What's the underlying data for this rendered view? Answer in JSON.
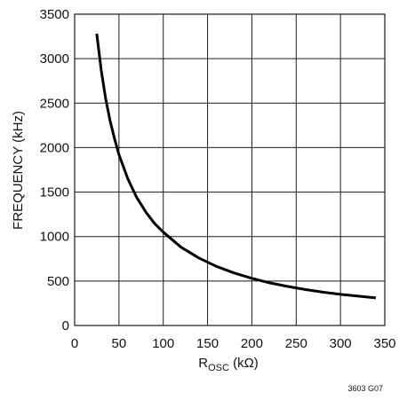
{
  "chart_data": {
    "type": "line",
    "x_axis": {
      "label_main": "R",
      "label_sub": "OSC",
      "label_unit": " (kΩ)",
      "range": [
        0,
        350
      ],
      "ticks": [
        "0",
        "50",
        "100",
        "150",
        "200",
        "250",
        "300",
        "350"
      ]
    },
    "y_axis": {
      "label": "FREQUENCY (kHz)",
      "range": [
        0,
        3500
      ],
      "ticks": [
        "0",
        "500",
        "1000",
        "1500",
        "2000",
        "2500",
        "3000",
        "3500"
      ]
    },
    "grid": true,
    "series": [
      {
        "points": [
          [
            25,
            3280
          ],
          [
            30,
            2870
          ],
          [
            35,
            2550
          ],
          [
            40,
            2300
          ],
          [
            45,
            2100
          ],
          [
            50,
            1920
          ],
          [
            60,
            1650
          ],
          [
            70,
            1440
          ],
          [
            80,
            1280
          ],
          [
            90,
            1150
          ],
          [
            100,
            1050
          ],
          [
            120,
            880
          ],
          [
            140,
            760
          ],
          [
            160,
            665
          ],
          [
            180,
            590
          ],
          [
            200,
            530
          ],
          [
            220,
            480
          ],
          [
            240,
            440
          ],
          [
            260,
            405
          ],
          [
            280,
            375
          ],
          [
            300,
            350
          ],
          [
            320,
            330
          ],
          [
            340,
            310
          ]
        ]
      }
    ],
    "note": "3603 G07",
    "color": "#000000"
  }
}
